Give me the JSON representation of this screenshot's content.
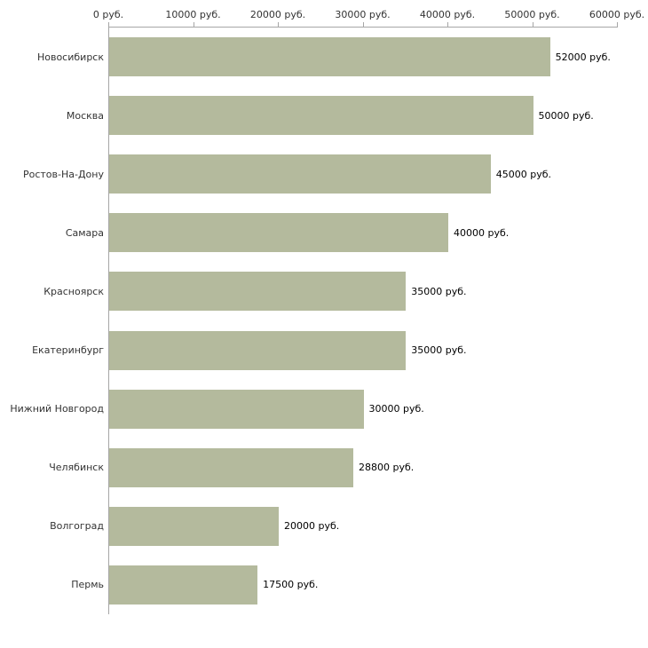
{
  "chart_data": {
    "type": "bar",
    "orientation": "horizontal",
    "title": "",
    "xlabel": "",
    "ylabel": "",
    "categories": [
      "Новосибирск",
      "Москва",
      "Ростов-На-Дону",
      "Самара",
      "Красноярск",
      "Екатеринбург",
      "Нижний Новгород",
      "Челябинск",
      "Волгоград",
      "Пермь"
    ],
    "values": [
      52000,
      50000,
      45000,
      40000,
      35000,
      35000,
      30000,
      28800,
      20000,
      17500
    ],
    "value_labels": [
      "52000 руб.",
      "50000 руб.",
      "45000 руб.",
      "40000 руб.",
      "35000 руб.",
      "35000 руб.",
      "30000 руб.",
      "28800 руб.",
      "20000 руб.",
      "17500 руб."
    ],
    "xlim": [
      0,
      60000
    ],
    "x_ticks": [
      {
        "value": 0,
        "label": "0 руб."
      },
      {
        "value": 10000,
        "label": "10000 руб."
      },
      {
        "value": 20000,
        "label": "20000 руб."
      },
      {
        "value": 30000,
        "label": "30000 руб."
      },
      {
        "value": 40000,
        "label": "40000 руб."
      },
      {
        "value": 50000,
        "label": "50000 руб."
      },
      {
        "value": 60000,
        "label": "60000 руб."
      }
    ],
    "grid": false,
    "legend": "none",
    "colors": {
      "bar_fill": "#b4ba9d",
      "axis_line": "#a6a6a6",
      "tick_mark": "#a6a6a6",
      "text": "#333333"
    }
  }
}
